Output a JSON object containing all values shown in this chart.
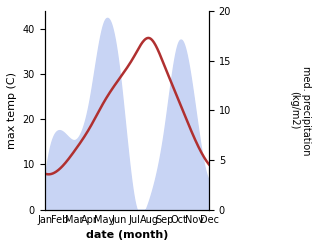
{
  "months": [
    "Jan",
    "Feb",
    "Mar",
    "Apr",
    "May",
    "Jun",
    "Jul",
    "Aug",
    "Sep",
    "Oct",
    "Nov",
    "Dec"
  ],
  "temperature": [
    8,
    9,
    13,
    18,
    24,
    29,
    34,
    38,
    32,
    24,
    16,
    10
  ],
  "precipitation": [
    3,
    8,
    7,
    11,
    19,
    14,
    1,
    1,
    8,
    17,
    11,
    3
  ],
  "temp_color": "#b03030",
  "precip_fill_color": "#c8d4f4",
  "ylabel_left": "max temp (C)",
  "ylabel_right": "med. precipitation\n(kg/m2)",
  "xlabel": "date (month)",
  "ylim_left": [
    0,
    44
  ],
  "ylim_right": [
    0,
    20
  ],
  "left_yticks": [
    0,
    10,
    20,
    30,
    40
  ],
  "right_yticks": [
    0,
    5,
    10,
    15,
    20
  ]
}
